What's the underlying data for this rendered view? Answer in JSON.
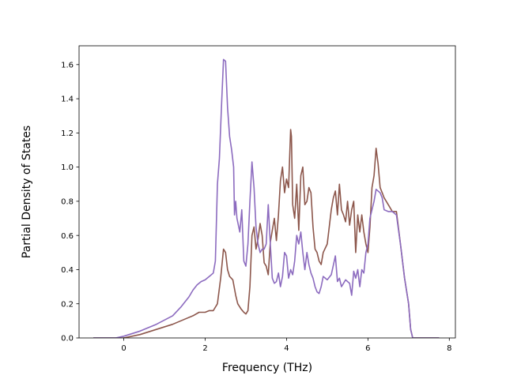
{
  "chart_data": {
    "type": "line",
    "title": "",
    "xlabel": "Frequency (THz)",
    "ylabel": "Partial Density of States",
    "xlim": [
      -1.1,
      8.15
    ],
    "ylim": [
      0.0,
      1.71
    ],
    "xticks": [
      0,
      2,
      4,
      6,
      8
    ],
    "xtick_labels": [
      "0",
      "2",
      "4",
      "6",
      "8"
    ],
    "yticks": [
      0.0,
      0.2,
      0.4,
      0.6,
      0.8,
      1.0,
      1.2,
      1.4,
      1.6
    ],
    "ytick_labels": [
      "0.0",
      "0.2",
      "0.4",
      "0.6",
      "0.8",
      "1.0",
      "1.2",
      "1.4",
      "1.6"
    ],
    "grid": false,
    "legend": "none",
    "series": [
      {
        "color": "#8c564b",
        "x": [
          -0.75,
          -0.2,
          0.0,
          0.4,
          0.8,
          1.2,
          1.5,
          1.7,
          1.85,
          2.0,
          2.1,
          2.2,
          2.3,
          2.38,
          2.45,
          2.5,
          2.55,
          2.6,
          2.68,
          2.75,
          2.8,
          2.88,
          2.95,
          3.0,
          3.05,
          3.1,
          3.15,
          3.2,
          3.25,
          3.3,
          3.35,
          3.4,
          3.45,
          3.5,
          3.55,
          3.6,
          3.65,
          3.7,
          3.75,
          3.8,
          3.85,
          3.9,
          3.95,
          4.0,
          4.05,
          4.1,
          4.12,
          4.15,
          4.2,
          4.25,
          4.3,
          4.35,
          4.4,
          4.45,
          4.5,
          4.55,
          4.6,
          4.65,
          4.7,
          4.75,
          4.8,
          4.85,
          4.9,
          5.0,
          5.1,
          5.15,
          5.2,
          5.25,
          5.3,
          5.35,
          5.4,
          5.45,
          5.5,
          5.55,
          5.6,
          5.65,
          5.7,
          5.75,
          5.8,
          5.85,
          5.9,
          5.95,
          6.0,
          6.05,
          6.1,
          6.15,
          6.2,
          6.25,
          6.3,
          6.35,
          6.4,
          6.5,
          6.6,
          6.7,
          6.8,
          6.9,
          7.0,
          7.05,
          7.1,
          7.75
        ],
        "y": [
          0.0,
          0.0,
          0.0,
          0.02,
          0.05,
          0.08,
          0.11,
          0.13,
          0.15,
          0.15,
          0.16,
          0.16,
          0.2,
          0.35,
          0.52,
          0.5,
          0.4,
          0.36,
          0.34,
          0.25,
          0.2,
          0.17,
          0.15,
          0.14,
          0.16,
          0.3,
          0.6,
          0.65,
          0.52,
          0.58,
          0.67,
          0.6,
          0.44,
          0.42,
          0.37,
          0.56,
          0.63,
          0.7,
          0.57,
          0.72,
          0.92,
          1.0,
          0.85,
          0.93,
          0.88,
          1.22,
          1.18,
          0.78,
          0.7,
          0.9,
          0.63,
          0.95,
          1.0,
          0.78,
          0.8,
          0.88,
          0.85,
          0.65,
          0.52,
          0.5,
          0.45,
          0.43,
          0.5,
          0.55,
          0.75,
          0.82,
          0.86,
          0.72,
          0.9,
          0.75,
          0.72,
          0.68,
          0.8,
          0.66,
          0.75,
          0.8,
          0.5,
          0.72,
          0.62,
          0.72,
          0.62,
          0.55,
          0.5,
          0.65,
          0.88,
          0.95,
          1.11,
          1.02,
          0.88,
          0.85,
          0.82,
          0.78,
          0.74,
          0.74,
          0.55,
          0.35,
          0.2,
          0.05,
          0.0,
          0.0
        ]
      },
      {
        "color": "#8c6bbf",
        "x": [
          -0.75,
          -0.2,
          0.0,
          0.4,
          0.8,
          1.2,
          1.4,
          1.6,
          1.7,
          1.8,
          1.9,
          2.0,
          2.1,
          2.2,
          2.25,
          2.3,
          2.35,
          2.4,
          2.45,
          2.5,
          2.55,
          2.6,
          2.65,
          2.7,
          2.72,
          2.75,
          2.78,
          2.85,
          2.9,
          2.95,
          3.0,
          3.05,
          3.1,
          3.15,
          3.2,
          3.25,
          3.3,
          3.35,
          3.4,
          3.45,
          3.5,
          3.55,
          3.6,
          3.65,
          3.7,
          3.75,
          3.8,
          3.85,
          3.9,
          3.95,
          4.0,
          4.05,
          4.1,
          4.15,
          4.2,
          4.25,
          4.3,
          4.35,
          4.4,
          4.45,
          4.5,
          4.55,
          4.6,
          4.65,
          4.7,
          4.75,
          4.8,
          4.85,
          4.9,
          5.0,
          5.1,
          5.2,
          5.25,
          5.3,
          5.35,
          5.4,
          5.45,
          5.5,
          5.55,
          5.6,
          5.65,
          5.7,
          5.75,
          5.8,
          5.85,
          5.9,
          5.95,
          6.0,
          6.05,
          6.1,
          6.15,
          6.2,
          6.3,
          6.35,
          6.4,
          6.5,
          6.6,
          6.7,
          6.8,
          6.9,
          7.0,
          7.05,
          7.1,
          7.75
        ],
        "y": [
          0.0,
          0.0,
          0.01,
          0.04,
          0.08,
          0.13,
          0.18,
          0.24,
          0.28,
          0.31,
          0.33,
          0.34,
          0.36,
          0.38,
          0.45,
          0.9,
          1.05,
          1.35,
          1.63,
          1.62,
          1.35,
          1.18,
          1.1,
          1.0,
          0.72,
          0.8,
          0.7,
          0.62,
          0.75,
          0.45,
          0.42,
          0.55,
          0.8,
          1.03,
          0.88,
          0.65,
          0.55,
          0.5,
          0.52,
          0.52,
          0.55,
          0.78,
          0.55,
          0.35,
          0.32,
          0.33,
          0.38,
          0.3,
          0.36,
          0.5,
          0.48,
          0.35,
          0.4,
          0.37,
          0.45,
          0.6,
          0.55,
          0.62,
          0.5,
          0.4,
          0.5,
          0.43,
          0.38,
          0.35,
          0.3,
          0.27,
          0.26,
          0.3,
          0.36,
          0.34,
          0.37,
          0.48,
          0.33,
          0.35,
          0.3,
          0.32,
          0.34,
          0.33,
          0.32,
          0.25,
          0.39,
          0.35,
          0.4,
          0.3,
          0.4,
          0.38,
          0.5,
          0.55,
          0.7,
          0.75,
          0.8,
          0.87,
          0.85,
          0.82,
          0.75,
          0.74,
          0.74,
          0.72,
          0.55,
          0.35,
          0.2,
          0.05,
          0.0,
          0.0
        ]
      }
    ]
  }
}
